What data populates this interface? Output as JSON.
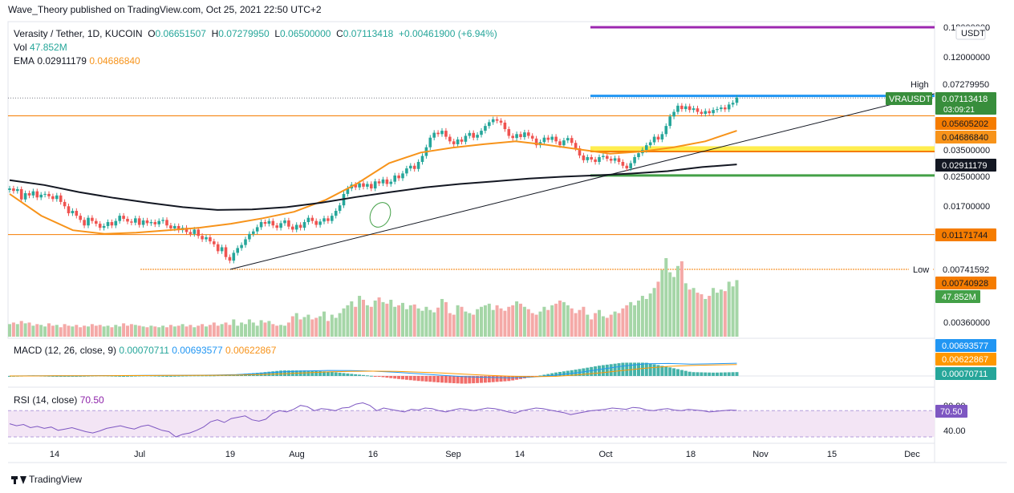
{
  "publisher_line": "Wave_Theory published on TradingView.com, Oct 25, 2021 22:50 UTC+2",
  "footer_brand": "TradingView",
  "quote_currency": "USDT",
  "legend": {
    "symbol": "Verasity / Tether, 1D, KUCOIN",
    "open_label": "O",
    "open": "0.06651507",
    "high_label": "H",
    "high": "0.07279950",
    "low_label": "L",
    "low": "0.06500000",
    "close_label": "C",
    "close": "0.07113418",
    "change": "+0.00461900 (+6.94%)",
    "vol_label": "Vol",
    "vol": "47.852M",
    "ema_label": "EMA",
    "ema_value_1": "0.02911179",
    "ema_value_2": "0.04686840"
  },
  "macd_legend": {
    "label": "MACD (12, 26, close, 9)",
    "v1": "0.00070711",
    "v2": "0.00693577",
    "v3": "0.00622867"
  },
  "rsi_legend": {
    "label": "RSI (14, close)",
    "value": "70.50"
  },
  "colors": {
    "up": "#26a69a",
    "down": "#ef5350",
    "vol_up": "#a5d6a7",
    "vol_down": "#f4a9a7",
    "ema_orange": "#f7931a",
    "ema_black": "#131722",
    "macd_blue": "#2196f3",
    "signal_orange": "#ff9800",
    "rsi_purple": "#7e57c2",
    "rsi_band": "#f3e5f5",
    "level_purple": "#9c27b0",
    "level_blue": "#2196f3",
    "level_yellow": "#ffeb3b",
    "level_orange": "#f57c00",
    "level_green": "#43a047"
  },
  "chart_data": {
    "type": "candlestick",
    "symbol": "VRAUSDT",
    "price_axis_labels": [
      "0.18000000",
      "0.12000000",
      "0.07279950",
      "0.07113418",
      "0.05605202",
      "0.04686840",
      "0.03500000",
      "0.02911179",
      "0.02500000",
      "0.01700000",
      "0.01171744",
      "0.00741592",
      "0.00740928",
      "47.852M",
      "0.00360000"
    ],
    "price_tag_labels": {
      "high_word": "High",
      "low_word": "Low",
      "symbol_tag": "VRAUSDT",
      "countdown": "03:09:21",
      "high": "0.07279950",
      "last": "0.07113418",
      "level_orange": "0.05605202",
      "ema_orange": "0.04686840",
      "ema_black": "0.02911179",
      "level_low_orange": "0.01171744",
      "low": "0.00741592",
      "low_tag": "0.00740928",
      "vol": "47.852M"
    },
    "y_ticks": [
      "0.18000000",
      "0.12000000",
      "0.03500000",
      "0.02500000",
      "0.01700000",
      "0.00360000"
    ],
    "macd_axis": {
      "blue_tag": "0.00693577",
      "orange_tag": "0.00622867",
      "teal_tag": "0.00070711"
    },
    "rsi_axis": {
      "ticks": [
        "80.00",
        "40.00"
      ],
      "value_tag": "70.50"
    },
    "x_tick_labels": [
      "14",
      "Jul",
      "19",
      "Aug",
      "16",
      "Sep",
      "14",
      "Oct",
      "18",
      "Nov",
      "15",
      "Dec"
    ],
    "levels": [
      {
        "name": "purple",
        "value": 0.18
      },
      {
        "name": "high",
        "value": 0.0728
      },
      {
        "name": "orange_upper",
        "value": 0.056
      },
      {
        "name": "yellow_zone_top",
        "value": 0.0375
      },
      {
        "name": "yellow_zone_bottom",
        "value": 0.035
      },
      {
        "name": "green",
        "value": 0.0255
      },
      {
        "name": "orange_lower",
        "value": 0.0117
      },
      {
        "name": "low",
        "value": 0.0074
      }
    ],
    "close_series": [
      0.0215,
      0.0208,
      0.0213,
      0.0186,
      0.0202,
      0.0196,
      0.0207,
      0.0191,
      0.0198,
      0.02,
      0.0194,
      0.0187,
      0.0196,
      0.018,
      0.017,
      0.0155,
      0.016,
      0.015,
      0.0142,
      0.0132,
      0.0146,
      0.014,
      0.0135,
      0.0128,
      0.0131,
      0.0138,
      0.0132,
      0.014,
      0.015,
      0.0144,
      0.0139,
      0.0137,
      0.0145,
      0.0133,
      0.0141,
      0.0136,
      0.0138,
      0.0134,
      0.014,
      0.0142,
      0.0132,
      0.0127,
      0.0131,
      0.0124,
      0.0128,
      0.0121,
      0.0118,
      0.0125,
      0.0115,
      0.011,
      0.0113,
      0.0107,
      0.0103,
      0.0094,
      0.0099,
      0.0087,
      0.0083,
      0.0092,
      0.0098,
      0.0102,
      0.011,
      0.0118,
      0.0122,
      0.0129,
      0.0138,
      0.0135,
      0.014,
      0.0132,
      0.0128,
      0.0136,
      0.0141,
      0.013,
      0.0125,
      0.0133,
      0.0128,
      0.0138,
      0.0146,
      0.014,
      0.0133,
      0.0139,
      0.0145,
      0.014,
      0.015,
      0.016,
      0.0172,
      0.02,
      0.0215,
      0.0226,
      0.0218,
      0.023,
      0.022,
      0.0228,
      0.0215,
      0.0236,
      0.023,
      0.0242,
      0.0228,
      0.0235,
      0.0255,
      0.0246,
      0.0262,
      0.028,
      0.029,
      0.0278,
      0.0305,
      0.033,
      0.037,
      0.042,
      0.0448,
      0.044,
      0.046,
      0.0425,
      0.04,
      0.0385,
      0.041,
      0.0398,
      0.043,
      0.0447,
      0.042,
      0.0436,
      0.046,
      0.049,
      0.0515,
      0.0535,
      0.0525,
      0.0512,
      0.047,
      0.043,
      0.0418,
      0.044,
      0.0423,
      0.045,
      0.043,
      0.0415,
      0.038,
      0.0396,
      0.042,
      0.0408,
      0.0425,
      0.04,
      0.038,
      0.0405,
      0.0418,
      0.0392,
      0.0365,
      0.0332,
      0.0312,
      0.0325,
      0.0315,
      0.0305,
      0.0325,
      0.033,
      0.0318,
      0.031,
      0.032,
      0.0305,
      0.029,
      0.028,
      0.03,
      0.0325,
      0.0342,
      0.0357,
      0.038,
      0.0395,
      0.0425,
      0.041,
      0.044,
      0.049,
      0.0555,
      0.059,
      0.064,
      0.0612,
      0.0635,
      0.0605,
      0.0618,
      0.059,
      0.0575,
      0.0596,
      0.058,
      0.0605,
      0.0612,
      0.0625,
      0.061,
      0.065,
      0.0665,
      0.0711
    ],
    "volume_rel": [
      0.16,
      0.18,
      0.16,
      0.2,
      0.17,
      0.18,
      0.14,
      0.16,
      0.15,
      0.13,
      0.17,
      0.14,
      0.15,
      0.12,
      0.16,
      0.14,
      0.13,
      0.15,
      0.12,
      0.14,
      0.13,
      0.16,
      0.14,
      0.15,
      0.13,
      0.14,
      0.12,
      0.15,
      0.13,
      0.17,
      0.14,
      0.16,
      0.15,
      0.14,
      0.13,
      0.12,
      0.14,
      0.13,
      0.12,
      0.14,
      0.12,
      0.15,
      0.13,
      0.14,
      0.16,
      0.13,
      0.15,
      0.12,
      0.14,
      0.16,
      0.13,
      0.15,
      0.18,
      0.14,
      0.16,
      0.18,
      0.15,
      0.22,
      0.14,
      0.18,
      0.16,
      0.22,
      0.18,
      0.14,
      0.21,
      0.18,
      0.2,
      0.16,
      0.14,
      0.15,
      0.14,
      0.18,
      0.26,
      0.3,
      0.22,
      0.25,
      0.28,
      0.22,
      0.24,
      0.26,
      0.32,
      0.2,
      0.28,
      0.24,
      0.3,
      0.36,
      0.4,
      0.45,
      0.38,
      0.52,
      0.47,
      0.4,
      0.38,
      0.46,
      0.5,
      0.44,
      0.42,
      0.47,
      0.38,
      0.4,
      0.43,
      0.35,
      0.4,
      0.41,
      0.36,
      0.33,
      0.38,
      0.34,
      0.31,
      0.37,
      0.48,
      0.44,
      0.3,
      0.28,
      0.4,
      0.38,
      0.32,
      0.3,
      0.28,
      0.35,
      0.38,
      0.4,
      0.42,
      0.34,
      0.4,
      0.36,
      0.33,
      0.38,
      0.4,
      0.45,
      0.42,
      0.38,
      0.35,
      0.3,
      0.28,
      0.32,
      0.38,
      0.34,
      0.4,
      0.42,
      0.46,
      0.44,
      0.4,
      0.36,
      0.3,
      0.34,
      0.38,
      0.28,
      0.22,
      0.3,
      0.34,
      0.26,
      0.24,
      0.28,
      0.32,
      0.3,
      0.36,
      0.4,
      0.44,
      0.4,
      0.46,
      0.52,
      0.48,
      0.55,
      0.62,
      0.7,
      0.85,
      1.0,
      0.82,
      0.76,
      0.9,
      0.96,
      0.68,
      0.6,
      0.62,
      0.56,
      0.54,
      0.48,
      0.52,
      0.62,
      0.56,
      0.6,
      0.58,
      0.7,
      0.64,
      0.72
    ],
    "ema_orange_series": [
      0.02,
      0.015,
      0.0124,
      0.0118,
      0.012,
      0.0124,
      0.0128,
      0.0135,
      0.0145,
      0.0158,
      0.0185,
      0.023,
      0.03,
      0.0345,
      0.0368,
      0.0385,
      0.04,
      0.0382,
      0.036,
      0.034,
      0.035,
      0.037,
      0.04,
      0.046
    ],
    "ema_black_series": [
      0.024,
      0.0225,
      0.0205,
      0.019,
      0.0178,
      0.0168,
      0.0162,
      0.0163,
      0.0168,
      0.0178,
      0.0192,
      0.0205,
      0.0218,
      0.0228,
      0.0236,
      0.0245,
      0.0251,
      0.0256,
      0.0262,
      0.027,
      0.0285,
      0.0295
    ],
    "macd_series": [
      0.0,
      0.0001,
      0.0001,
      0.0001,
      0.0002,
      0.0002,
      0.0003,
      0.0003,
      0.0004,
      0.0005,
      0.0008,
      0.0014,
      0.0022,
      0.0027,
      0.003,
      0.0029,
      0.0026,
      0.002,
      0.0012,
      0.0004,
      -0.0004,
      -0.0008,
      -0.001,
      -0.0006,
      0.0004,
      0.0018,
      0.0036,
      0.0054,
      0.0066,
      0.0068,
      0.0064,
      0.0066,
      0.0069
    ],
    "signal_series": [
      0.0,
      0.0,
      0.0001,
      0.0001,
      0.0001,
      0.0002,
      0.0002,
      0.0003,
      0.0003,
      0.0004,
      0.0005,
      0.0008,
      0.0012,
      0.0017,
      0.0022,
      0.0025,
      0.0026,
      0.0025,
      0.0021,
      0.0016,
      0.001,
      0.0004,
      -0.0001,
      -0.0004,
      -0.0002,
      0.0006,
      0.0017,
      0.003,
      0.0042,
      0.0052,
      0.0057,
      0.006,
      0.0062
    ],
    "rsi_series": [
      50,
      47,
      49,
      44,
      46,
      43,
      45,
      40,
      42,
      44,
      41,
      38,
      36,
      39,
      43,
      45,
      47,
      44,
      42,
      46,
      48,
      44,
      40,
      38,
      30,
      34,
      36,
      40,
      45,
      53,
      56,
      52,
      58,
      60,
      62,
      56,
      54,
      57,
      66,
      70,
      68,
      72,
      78,
      76,
      70,
      73,
      72,
      70,
      74,
      75,
      80,
      82,
      78,
      70,
      74,
      72,
      70,
      68,
      72,
      71,
      74,
      73,
      70,
      68,
      71,
      73,
      72,
      70,
      72,
      74,
      73,
      71,
      68,
      66,
      70,
      72,
      74,
      73,
      71,
      69,
      67,
      64,
      66,
      68,
      70,
      71,
      72,
      74,
      73,
      72,
      75,
      74,
      71,
      70,
      72,
      73,
      71,
      70,
      72,
      71,
      70,
      68,
      69,
      70,
      71,
      70.5
    ],
    "trendline": {
      "from": {
        "x_index": 58,
        "value": 0.0074
      },
      "to": {
        "x_index": 236,
        "value": 0.0728
      }
    },
    "ema_legend": {
      "orange": "0.04686840",
      "black": "0.02911179"
    }
  }
}
